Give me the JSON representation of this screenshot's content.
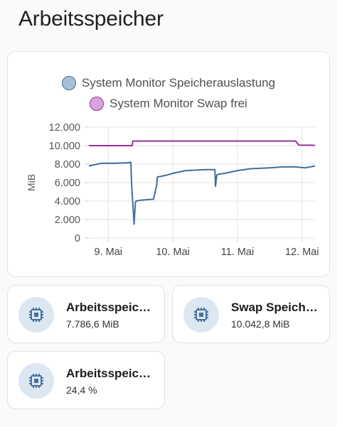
{
  "page": {
    "title": "Arbeitsspeicher"
  },
  "chart_data": {
    "type": "line",
    "ylabel": "MiB",
    "yticks": [
      "12.000",
      "10.000",
      "8.000",
      "6.000",
      "4.000",
      "2.000",
      "0"
    ],
    "ylim": [
      0,
      12000
    ],
    "xticks": [
      "9. Mai",
      "10. Mai",
      "11. Mai",
      "12. Mai"
    ],
    "legend_position": "top-center",
    "grid": true,
    "series": [
      {
        "name": "System Monitor Speicherauslastung",
        "color": "#3f6f9c",
        "fill": "#a8bfd6",
        "x": [
          0.0,
          0.2,
          0.4,
          0.6,
          0.65,
          0.66,
          0.7,
          0.72,
          0.73,
          0.8,
          1.0,
          1.05,
          1.06,
          1.2,
          1.3,
          1.5,
          1.8,
          1.95,
          1.96,
          1.98,
          2.0,
          2.1,
          2.3,
          2.5,
          2.8,
          3.0,
          3.2,
          3.35,
          3.5
        ],
        "values": [
          7800,
          8100,
          8100,
          8150,
          8200,
          6000,
          1500,
          3800,
          4000,
          4100,
          4200,
          5700,
          6600,
          6800,
          7000,
          7300,
          7400,
          7400,
          5600,
          6800,
          6900,
          7000,
          7300,
          7500,
          7600,
          7700,
          7700,
          7600,
          7800
        ]
      },
      {
        "name": "System Monitor Swap frei",
        "color": "#9b2f9f",
        "fill": "#d9a3dc",
        "x": [
          0.0,
          0.67,
          0.68,
          3.2,
          3.25,
          3.5
        ],
        "values": [
          10000,
          10000,
          10500,
          10500,
          10050,
          10042
        ]
      }
    ]
  },
  "tiles": [
    {
      "name": "Arbeitsspeic…",
      "value": "7.786,6 MiB",
      "icon": "memory-chip-icon"
    },
    {
      "name": "Swap Speich…",
      "value": "10.042,8 MiB",
      "icon": "memory-chip-icon"
    },
    {
      "name": "Arbeitsspeic…",
      "value": "24,4 %",
      "icon": "memory-chip-icon"
    }
  ],
  "colors": {
    "icon": "#44739e",
    "icon_bg": "#dde7f2"
  }
}
